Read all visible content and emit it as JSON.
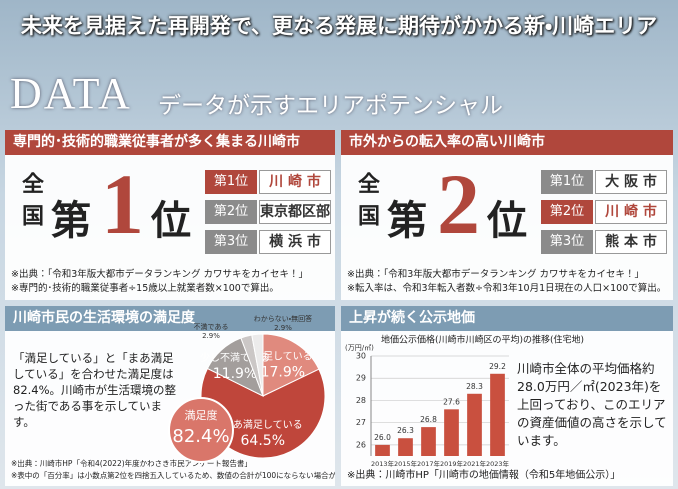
{
  "header": {
    "title": "未来を見据えた再開発で、更なる発展に期待がかかる新・川崎エリア",
    "data_label": "DATA",
    "subtitle": "データが示すエリアポテンシャル"
  },
  "ranking_panels": [
    {
      "title": "専門的･技術的職業従事者が多く集まる川崎市",
      "nationwide": "全国",
      "ordinal_prefix": "第",
      "rank": 1,
      "ordinal_suffix": "位",
      "ranks": [
        {
          "place": "第1位",
          "city": "川 崎 市"
        },
        {
          "place": "第2位",
          "city": "東京都区部"
        },
        {
          "place": "第3位",
          "city": "横 浜 市"
        }
      ],
      "highlight": 0,
      "notes": [
        "※出典：「令和3年版大都市データランキング カワサキをカイセキ！」",
        "※専門的･技術的職業従事者÷15歳以上就業者数×100で算出。"
      ]
    },
    {
      "title": "市外からの転入率の高い川崎市",
      "nationwide": "全国",
      "ordinal_prefix": "第",
      "rank": 2,
      "ordinal_suffix": "位",
      "ranks": [
        {
          "place": "第1位",
          "city": "大 阪 市"
        },
        {
          "place": "第2位",
          "city": "川 崎 市"
        },
        {
          "place": "第3位",
          "city": "熊 本 市"
        }
      ],
      "highlight": 1,
      "notes": [
        "※出典：「令和3年版大都市データランキング カワサキをカイセキ！」",
        "※転入率は、令和3年転入者数÷令和3年10月1日現在の人口×100で算出。"
      ]
    }
  ],
  "satisfaction": {
    "title": "川崎市民の生活環境の満足度",
    "text": "「満足している」と「まあ満足している」を合わせた満足度は82.4%。川崎市が生活環境の整った街である事を示しています。",
    "notes": [
      "※出典：川崎市HP「令和4(2022)年度かわさき市民アンケート報告書」",
      "※表中の「百分率」は小数点第2位を四捨五入しているため、数値の合計が100にならない場合があります。"
    ],
    "chart_data": {
      "type": "pie",
      "categories": [
        "満足している",
        "まあ満足している",
        "少し不満である",
        "不満である",
        "わからない・無回答"
      ],
      "values": [
        17.9,
        64.5,
        11.9,
        2.9,
        2.9
      ],
      "value_labels": [
        "17.9%",
        "64.5%",
        "11.9%",
        "2.9%",
        "2.9%"
      ],
      "colors": [
        "#e08a7e",
        "#bf463b",
        "#a39e9c",
        "#cbc7c6",
        "#ecebeb"
      ],
      "center_label": "満足度",
      "center_value": 82.4,
      "center_value_label": "82.4%"
    }
  },
  "land_price": {
    "title": "上昇が続く公示地価",
    "text": "川崎市全体の平均価格約28.0万円／㎡(2023年)を上回っており、このエリアの資産価値の高さを示しています。",
    "note": "※出典：川崎市HP「川崎市の地価情報（令和5年地価公示）」",
    "chart_data": {
      "type": "bar",
      "title": "地価公示価格(川崎市川崎区の平均)の推移(住宅地)",
      "y_unit": "(万円/㎡)",
      "categories": [
        "2013年",
        "2015年",
        "2017年",
        "2019年",
        "2021年",
        "2023年"
      ],
      "values": [
        26.0,
        26.3,
        26.8,
        27.6,
        28.3,
        29.2
      ],
      "value_labels": [
        "26.0",
        "26.3",
        "26.8",
        "27.6",
        "28.3",
        "29.2"
      ],
      "ylim": [
        25.5,
        30
      ],
      "yticks": [
        26,
        27,
        28,
        29,
        30
      ],
      "color": "#c9503f",
      "grid": true
    }
  }
}
